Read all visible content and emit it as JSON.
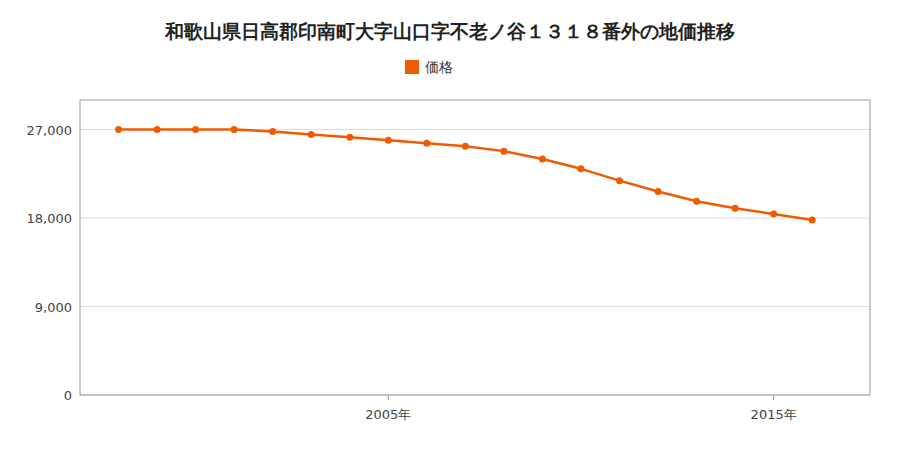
{
  "chart_data": {
    "type": "line",
    "title": "和歌山県日高郡印南町大字山口字不老ノ谷１３１８番外の地価推移",
    "x": [
      1998,
      1999,
      2000,
      2001,
      2002,
      2003,
      2004,
      2005,
      2006,
      2007,
      2008,
      2009,
      2010,
      2011,
      2012,
      2013,
      2014,
      2015,
      2016
    ],
    "series": [
      {
        "name": "価格",
        "color": "#f05a00",
        "marker": "circle",
        "values": [
          27000,
          27000,
          27000,
          27000,
          26800,
          26500,
          26200,
          25900,
          25600,
          25300,
          24800,
          24000,
          23000,
          21800,
          20700,
          19700,
          19000,
          18400,
          17800
        ]
      }
    ],
    "xlim": [
      1997.0,
      2017.5
    ],
    "xticks": [
      {
        "value": 2005,
        "label": "2005年"
      },
      {
        "value": 2015,
        "label": "2015年"
      }
    ],
    "ylim": [
      0,
      30000
    ],
    "yticks": [
      0,
      {
        "value": 9000,
        "label": "9,000"
      },
      {
        "value": 18000,
        "label": "18,000"
      },
      {
        "value": 27000,
        "label": "27,000"
      }
    ],
    "grid": true,
    "legend": "top"
  }
}
